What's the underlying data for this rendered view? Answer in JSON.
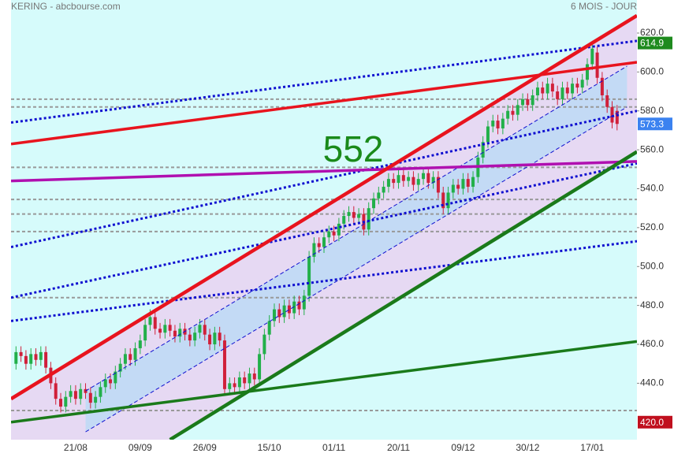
{
  "chart_data": {
    "type": "candlestick",
    "title": "KERING - abcbourse.com",
    "subtitle": "6 MOIS - JOUR",
    "annotation": {
      "text": "552",
      "color": "#1a8a1a"
    },
    "categories": [
      null,
      null,
      null,
      null,
      null,
      null,
      null,
      null,
      null,
      null,
      null,
      null,
      "21/08",
      null,
      null,
      null,
      null,
      null,
      null,
      null,
      null,
      null,
      null,
      null,
      null,
      "09/09",
      null,
      null,
      null,
      null,
      null,
      null,
      null,
      null,
      null,
      null,
      null,
      null,
      "26/09",
      null,
      null,
      null,
      null,
      null,
      null,
      null,
      null,
      null,
      null,
      null,
      null,
      "15/10",
      null,
      null,
      null,
      null,
      null,
      null,
      null,
      null,
      null,
      null,
      null,
      null,
      "01/11",
      null,
      null,
      null,
      null,
      null,
      null,
      null,
      null,
      null,
      null,
      null,
      null,
      "20/11",
      null,
      null,
      null,
      null,
      null,
      null,
      null,
      null,
      null,
      null,
      null,
      null,
      "09/12",
      null,
      null,
      null,
      null,
      null,
      null,
      null,
      null,
      null,
      null,
      null,
      null,
      "30/12",
      null,
      null,
      null,
      null,
      null,
      null,
      null,
      null,
      null,
      null,
      null,
      null,
      "17/01",
      null,
      null,
      null,
      null,
      null
    ],
    "open": [
      450,
      456,
      454,
      450,
      455,
      452,
      456,
      448,
      440,
      432,
      428,
      433,
      436,
      432,
      437,
      435,
      430,
      433,
      438,
      442,
      440,
      446,
      450,
      455,
      452,
      458,
      462,
      470,
      474,
      468,
      466,
      470,
      467,
      464,
      468,
      465,
      462,
      466,
      470,
      465,
      460,
      466,
      462,
      437,
      440,
      438,
      443,
      440,
      445,
      442,
      455,
      465,
      472,
      478,
      474,
      480,
      476,
      482,
      478,
      485,
      505,
      512,
      510,
      515,
      518,
      516,
      522,
      526,
      528,
      525,
      527,
      519,
      530,
      535,
      538,
      541,
      545,
      543,
      547,
      544,
      546,
      542,
      545,
      548,
      543,
      546,
      538,
      530,
      538,
      542,
      540,
      545,
      541,
      546,
      556,
      564,
      572,
      575,
      571,
      576,
      580,
      578,
      583,
      586,
      583,
      588,
      592,
      589,
      594,
      590,
      586,
      592,
      589,
      594,
      592,
      596,
      604,
      610,
      597,
      588,
      582,
      580
    ],
    "close": [
      456,
      454,
      450,
      455,
      452,
      456,
      448,
      440,
      432,
      428,
      433,
      436,
      432,
      437,
      435,
      430,
      433,
      438,
      442,
      440,
      446,
      450,
      455,
      452,
      458,
      462,
      470,
      474,
      468,
      466,
      470,
      467,
      464,
      468,
      465,
      462,
      466,
      470,
      465,
      460,
      466,
      462,
      437,
      440,
      438,
      443,
      440,
      445,
      442,
      455,
      465,
      472,
      478,
      474,
      480,
      476,
      482,
      478,
      485,
      505,
      512,
      510,
      515,
      518,
      516,
      522,
      526,
      528,
      525,
      527,
      519,
      530,
      535,
      538,
      541,
      545,
      543,
      547,
      544,
      546,
      542,
      545,
      548,
      543,
      546,
      538,
      530,
      538,
      542,
      540,
      545,
      541,
      546,
      556,
      564,
      572,
      575,
      571,
      576,
      580,
      578,
      583,
      586,
      583,
      588,
      592,
      589,
      594,
      590,
      586,
      592,
      589,
      594,
      592,
      596,
      604,
      612,
      597,
      588,
      582,
      574,
      573.3
    ],
    "high": [
      459,
      459,
      457,
      458,
      458,
      459,
      459,
      451,
      443,
      435,
      436,
      439,
      439,
      440,
      440,
      438,
      436,
      441,
      445,
      445,
      449,
      453,
      458,
      458,
      461,
      465,
      473,
      478,
      477,
      471,
      473,
      473,
      470,
      471,
      471,
      468,
      469,
      473,
      473,
      468,
      469,
      469,
      465,
      443,
      443,
      446,
      446,
      448,
      448,
      458,
      468,
      475,
      481,
      481,
      483,
      483,
      485,
      485,
      488,
      508,
      515,
      515,
      518,
      521,
      521,
      525,
      529,
      531,
      531,
      530,
      530,
      533,
      538,
      541,
      544,
      548,
      548,
      550,
      550,
      549,
      549,
      548,
      551,
      551,
      549,
      549,
      541,
      541,
      545,
      545,
      548,
      548,
      549,
      559,
      567,
      575,
      578,
      578,
      579,
      583,
      583,
      586,
      589,
      589,
      591,
      595,
      595,
      597,
      597,
      593,
      595,
      595,
      597,
      597,
      599,
      607,
      615,
      613,
      600,
      591,
      585,
      583
    ],
    "low": [
      447,
      451,
      447,
      447,
      449,
      449,
      445,
      437,
      429,
      425,
      425,
      430,
      429,
      429,
      432,
      427,
      427,
      430,
      435,
      437,
      437,
      443,
      447,
      449,
      449,
      455,
      459,
      467,
      465,
      463,
      463,
      464,
      461,
      461,
      462,
      459,
      459,
      463,
      462,
      457,
      457,
      459,
      434,
      434,
      435,
      435,
      437,
      437,
      439,
      439,
      452,
      462,
      469,
      471,
      471,
      473,
      473,
      475,
      475,
      482,
      502,
      507,
      507,
      512,
      513,
      513,
      519,
      523,
      522,
      522,
      516,
      516,
      527,
      532,
      535,
      538,
      540,
      540,
      541,
      541,
      539,
      539,
      542,
      540,
      540,
      535,
      527,
      527,
      535,
      537,
      537,
      538,
      538,
      543,
      553,
      561,
      569,
      568,
      568,
      573,
      575,
      575,
      580,
      580,
      580,
      585,
      586,
      586,
      587,
      583,
      583,
      586,
      586,
      589,
      589,
      593,
      601,
      594,
      585,
      579,
      571,
      570
    ],
    "up_color": "#22b04a",
    "down_color": "#d0203a",
    "xlim": [
      -1,
      125
    ],
    "ylim": [
      411,
      637
    ],
    "yticks": [
      {
        "value": 440,
        "label": "440.0"
      },
      {
        "value": 460,
        "label": "460.0"
      },
      {
        "value": 480,
        "label": "480.0"
      },
      {
        "value": 500,
        "label": "500.0"
      },
      {
        "value": 520,
        "label": "520.0"
      },
      {
        "value": 540,
        "label": "540.0"
      },
      {
        "value": 560,
        "label": "560.0"
      },
      {
        "value": 580,
        "label": "580.0"
      },
      {
        "value": 600,
        "label": "600.0"
      },
      {
        "value": 620,
        "label": "620.0"
      }
    ],
    "levels": [
      586,
      582,
      551,
      534.5,
      527,
      518,
      484,
      426
    ],
    "level_color": "#999999",
    "lines": [
      {
        "color": "#1010d0",
        "style": "dashed-thin",
        "points": [
          [
            14,
            436
          ],
          [
            123,
            603
          ]
        ]
      },
      {
        "color": "#1010d0",
        "style": "dashed-thin",
        "points": [
          [
            14,
            415
          ],
          [
            123,
            582
          ]
        ]
      },
      {
        "color": "#1010d0",
        "style": "dotted",
        "points": [
          [
            -1,
            574
          ],
          [
            125,
            616
          ]
        ]
      },
      {
        "color": "#1010d0",
        "style": "dotted",
        "points": [
          [
            -1,
            510
          ],
          [
            125,
            580
          ]
        ]
      },
      {
        "color": "#1010d0",
        "style": "dotted",
        "points": [
          [
            -1,
            484
          ],
          [
            125,
            553
          ]
        ]
      },
      {
        "color": "#1010d0",
        "style": "dotted",
        "points": [
          [
            -1,
            472
          ],
          [
            125,
            513
          ]
        ]
      },
      {
        "color": "#b010b0",
        "style": "solid",
        "points": [
          [
            -1,
            544
          ],
          [
            125,
            554
          ]
        ]
      },
      {
        "color": "#e8141e",
        "style": "solid",
        "points": [
          [
            -1,
            563
          ],
          [
            125,
            605
          ]
        ]
      },
      {
        "color": "#e8141e",
        "style": "solid-thick",
        "points": [
          [
            -1,
            432
          ],
          [
            125,
            629
          ]
        ]
      },
      {
        "color": "#1a7a1a",
        "style": "solid",
        "points": [
          [
            -1,
            420
          ],
          [
            125,
            461.5
          ]
        ]
      },
      {
        "color": "#1a7a1a",
        "style": "solid-thick",
        "points": [
          [
            31,
            411
          ],
          [
            125,
            559
          ]
        ]
      }
    ],
    "price_tags": [
      {
        "value": 614.9,
        "label": "614.9",
        "color": "#1e8a1e"
      },
      {
        "value": 573.3,
        "label": "573.3",
        "color": "#3b82f0"
      },
      {
        "value": 420,
        "label": "420.0",
        "color": "#c0101e"
      }
    ]
  }
}
